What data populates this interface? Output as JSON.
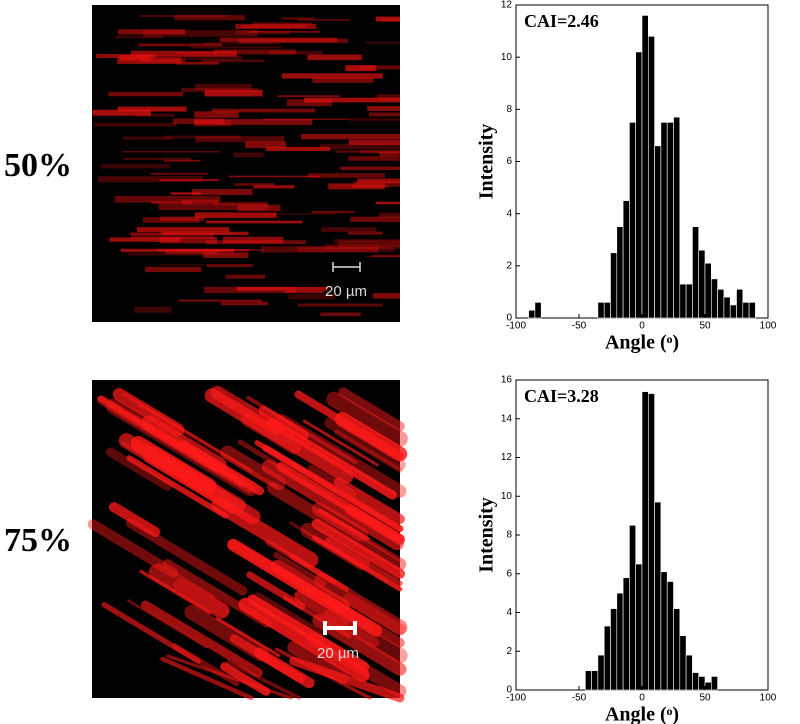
{
  "panels": [
    {
      "label": "50%",
      "scale_bar": "20 µm"
    },
    {
      "label": "75%",
      "scale_bar": "20 µm"
    }
  ],
  "chart_data": [
    {
      "type": "histogram",
      "annotation": "CAI=2.46",
      "xlabel": "Angle (ᵒ)",
      "ylabel": "Intensity",
      "color": "#000000",
      "bins": [
        -90,
        -85,
        -80,
        -75,
        -70,
        -65,
        -60,
        -55,
        -50,
        -45,
        -40,
        -35,
        -30,
        -25,
        -20,
        -15,
        -10,
        -5,
        0,
        5,
        10,
        15,
        20,
        25,
        30,
        35,
        40,
        45,
        50,
        55,
        60,
        65,
        70,
        75,
        80,
        85,
        90
      ],
      "values": [
        0.3,
        0.6,
        0,
        0,
        0,
        0,
        0,
        0,
        0,
        0,
        0,
        0.6,
        0.6,
        2.5,
        3.5,
        4.5,
        7.5,
        10.2,
        11.6,
        10.8,
        6.6,
        7.5,
        7.5,
        7.7,
        1.3,
        1.3,
        3.5,
        2.6,
        2.1,
        1.5,
        1.1,
        0.8,
        0.5,
        1.1,
        0.6,
        0.6
      ],
      "xlim": [
        -100,
        100
      ],
      "xticks": [
        -100,
        -50,
        0,
        50,
        100
      ],
      "ylim": [
        0,
        12
      ],
      "yticks": [
        0,
        2,
        4,
        6,
        8,
        10,
        12
      ]
    },
    {
      "type": "histogram",
      "annotation": "CAI=3.28",
      "xlabel": "Angle (ᵒ)",
      "ylabel": "Intensity",
      "color": "#000000",
      "bins": [
        -45,
        -40,
        -35,
        -30,
        -25,
        -20,
        -15,
        -10,
        -5,
        0,
        5,
        10,
        15,
        20,
        25,
        30,
        35,
        40,
        45,
        50,
        55,
        60
      ],
      "values": [
        1,
        1,
        1.8,
        3.3,
        4.2,
        5,
        5.8,
        8.5,
        6.5,
        15.4,
        15.3,
        9.7,
        6.1,
        5.6,
        4.2,
        2.8,
        1.8,
        0.9,
        0.7,
        0.4,
        0.7
      ],
      "xlim": [
        -100,
        100
      ],
      "xticks": [
        -100,
        -50,
        0,
        50,
        100
      ],
      "ylim": [
        0,
        16
      ],
      "yticks": [
        0,
        2,
        4,
        6,
        8,
        10,
        12,
        14,
        16
      ]
    }
  ]
}
